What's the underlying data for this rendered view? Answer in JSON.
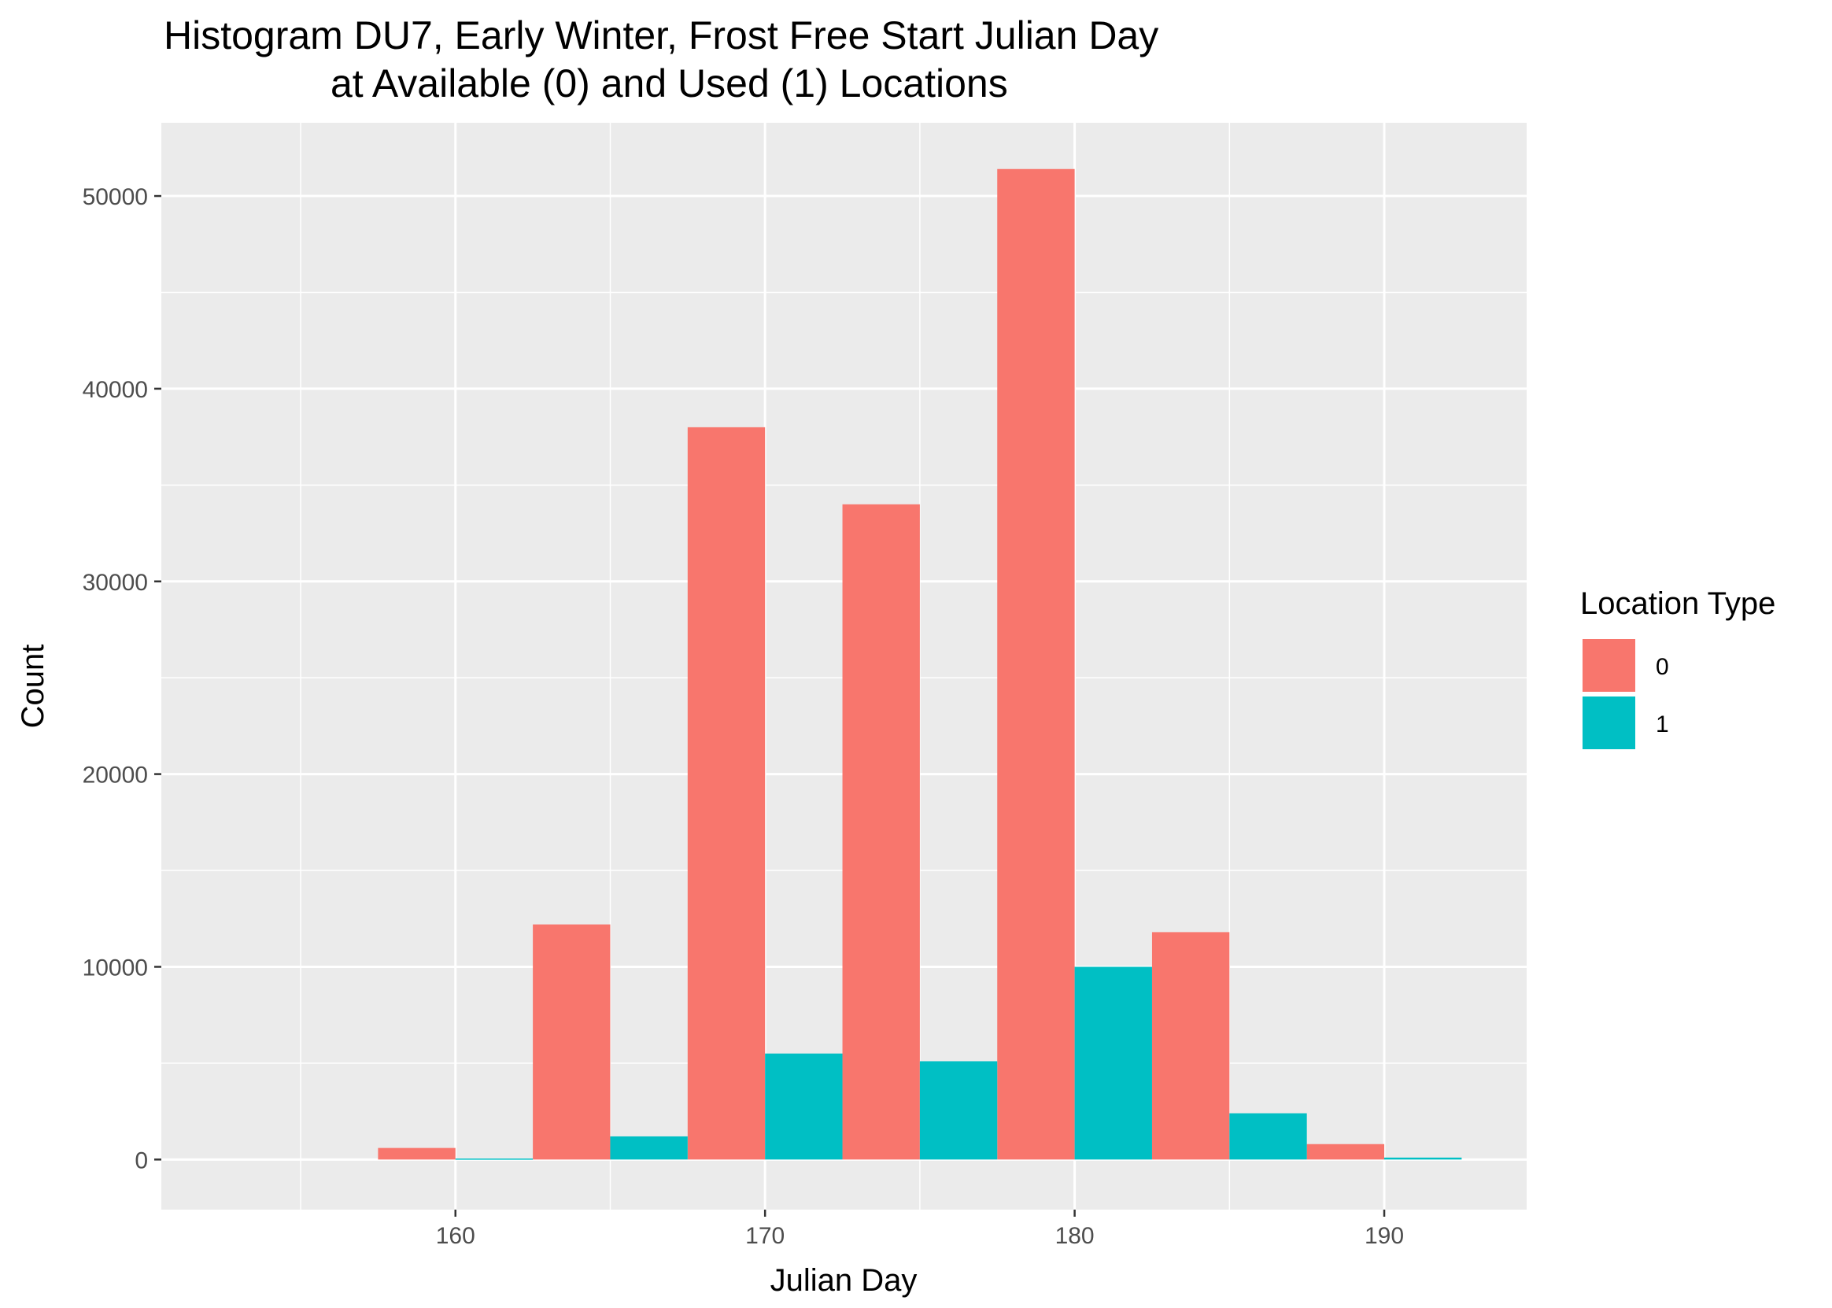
{
  "chart_data": {
    "type": "bar",
    "title_lines": [
      "Histogram DU7, Early Winter, Frost Free Start Julian Day",
      "at Available (0) and Used (1) Locations"
    ],
    "xlabel": "Julian Day",
    "ylabel": "Count",
    "x_ticks": [
      160,
      170,
      180,
      190
    ],
    "y_ticks": [
      0,
      10000,
      20000,
      30000,
      40000,
      50000
    ],
    "xlim": [
      150.5,
      194.6
    ],
    "ylim": [
      -2600,
      53800
    ],
    "bin_width": 5,
    "bin_starts": [
      157.5,
      162.5,
      167.5,
      172.5,
      177.5,
      182.5,
      187.5
    ],
    "bar_position": "dodge",
    "legend": {
      "title": "Location Type",
      "position": "right",
      "entries": [
        {
          "label": "0",
          "color": "#F8766D"
        },
        {
          "label": "1",
          "color": "#00BFC4"
        }
      ]
    },
    "series": [
      {
        "name": "0",
        "color": "#F8766D",
        "values": [
          600,
          12200,
          38000,
          34000,
          51400,
          11800,
          800
        ]
      },
      {
        "name": "1",
        "color": "#00BFC4",
        "values": [
          50,
          1200,
          5500,
          5100,
          10000,
          2400,
          100
        ]
      }
    ],
    "panel_background": "#EBEBEB",
    "grid": true
  }
}
